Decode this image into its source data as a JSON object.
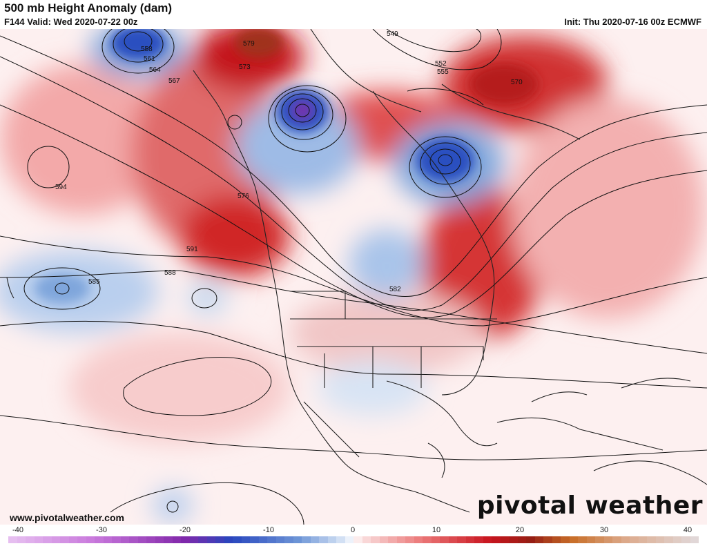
{
  "header": {
    "title": "500 mb Height Anomaly (dam)",
    "valid": "F144 Valid: Wed 2020-07-22 00z",
    "init": "Init: Thu 2020-07-16 00z ECMWF"
  },
  "footer": {
    "website": "www.pivotalweather.com",
    "logo": "pivotal weather"
  },
  "contour_labels": [
    "549",
    "552",
    "555",
    "558",
    "561",
    "564",
    "567",
    "570",
    "573",
    "576",
    "579",
    "582",
    "585",
    "588",
    "591",
    "594"
  ],
  "legend": {
    "ticks": [
      "-40",
      "-30",
      "-20",
      "-10",
      "0",
      "10",
      "20",
      "30",
      "40"
    ],
    "min": -40,
    "max": 40
  },
  "colors": {
    "strong_positive": "#c4141c",
    "positive": "#e86060",
    "weak_positive": "#f5b5b5",
    "strong_negative": "#2a4fc0",
    "negative": "#7fa6dc",
    "weak_negative": "#c6d8ef",
    "extreme_negative": "#7a2aa8"
  }
}
